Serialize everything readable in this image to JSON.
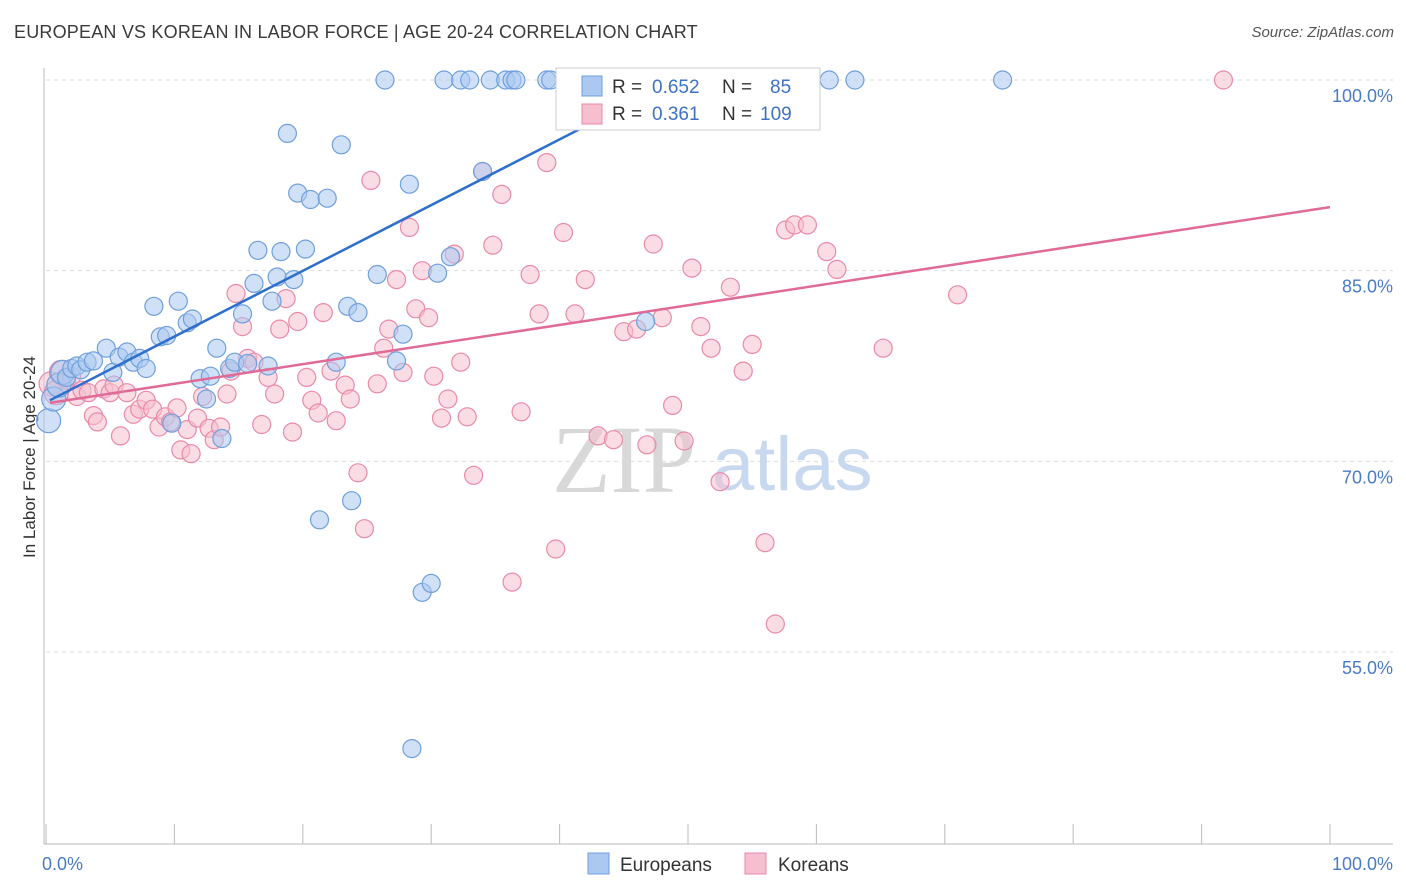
{
  "header": {
    "title": "EUROPEAN VS KOREAN IN LABOR FORCE | AGE 20-24 CORRELATION CHART",
    "source": "Source: ZipAtlas.com"
  },
  "watermark": {
    "zip": "ZIP",
    "atlas": "atlas"
  },
  "legend": {
    "europeans": {
      "r_label": "R =",
      "r_value": "0.652",
      "n_label": "N =",
      "n_value": "85"
    },
    "koreans": {
      "r_label": "R =",
      "r_value": "0.361",
      "n_label": "N =",
      "n_value": "109"
    }
  },
  "colors": {
    "europeans_fill": "#aac8f0",
    "europeans_stroke": "#6f9fdc",
    "europeans_line": "#2f6fcc",
    "koreans_fill": "#f6bfd0",
    "koreans_stroke": "#e98aa8",
    "koreans_line": "#e06b96"
  },
  "chart_data": {
    "type": "scatter",
    "title": "EUROPEAN VS KOREAN IN LABOR FORCE | AGE 20-24 CORRELATION CHART",
    "ylabel": "In Labor Force | Age 20-24",
    "xlabel": "",
    "xlim": [
      0,
      100
    ],
    "ylim": [
      40,
      101
    ],
    "x_ticks": [
      "0.0%",
      "100.0%"
    ],
    "y_ticks": [
      {
        "value": 100,
        "label": "100.0%"
      },
      {
        "value": 85,
        "label": "85.0%"
      },
      {
        "value": 70,
        "label": "70.0%"
      },
      {
        "value": 55,
        "label": "55.0%"
      }
    ],
    "legend_bottom": [
      "Europeans",
      "Koreans"
    ],
    "series": [
      {
        "name": "Europeans",
        "trend": {
          "x": [
            0.3,
            50.2
          ],
          "y": [
            74.8,
            100.6
          ]
        },
        "points": [
          [
            0.2,
            73.2
          ],
          [
            0.6,
            74.9
          ],
          [
            1.0,
            76.0
          ],
          [
            1.3,
            77.0
          ],
          [
            1.6,
            76.6
          ],
          [
            2.0,
            77.3
          ],
          [
            2.4,
            77.5
          ],
          [
            2.7,
            77.2
          ],
          [
            3.2,
            77.8
          ],
          [
            3.7,
            77.9
          ],
          [
            4.7,
            78.9
          ],
          [
            5.2,
            77.0
          ],
          [
            5.7,
            78.2
          ],
          [
            6.3,
            78.6
          ],
          [
            6.8,
            77.8
          ],
          [
            7.3,
            78.1
          ],
          [
            7.8,
            77.3
          ],
          [
            8.4,
            82.2
          ],
          [
            8.9,
            79.8
          ],
          [
            9.4,
            79.9
          ],
          [
            9.8,
            73.0
          ],
          [
            10.3,
            82.6
          ],
          [
            11.0,
            80.9
          ],
          [
            11.4,
            81.2
          ],
          [
            12.0,
            76.5
          ],
          [
            12.5,
            74.9
          ],
          [
            12.8,
            76.7
          ],
          [
            13.3,
            78.9
          ],
          [
            13.7,
            71.8
          ],
          [
            14.3,
            77.3
          ],
          [
            14.7,
            77.8
          ],
          [
            15.3,
            81.6
          ],
          [
            15.7,
            77.7
          ],
          [
            16.2,
            84.0
          ],
          [
            16.5,
            86.6
          ],
          [
            17.3,
            77.5
          ],
          [
            17.6,
            82.6
          ],
          [
            18.0,
            84.5
          ],
          [
            18.3,
            86.5
          ],
          [
            18.8,
            95.8
          ],
          [
            19.3,
            84.3
          ],
          [
            19.6,
            91.1
          ],
          [
            20.2,
            86.7
          ],
          [
            20.6,
            90.6
          ],
          [
            21.3,
            65.4
          ],
          [
            21.9,
            90.7
          ],
          [
            22.6,
            77.8
          ],
          [
            23.0,
            94.9
          ],
          [
            23.5,
            82.2
          ],
          [
            23.8,
            66.9
          ],
          [
            24.3,
            81.7
          ],
          [
            25.8,
            84.7
          ],
          [
            26.4,
            100
          ],
          [
            27.3,
            77.9
          ],
          [
            27.8,
            80.0
          ],
          [
            28.3,
            91.8
          ],
          [
            28.5,
            47.4
          ],
          [
            29.3,
            59.7
          ],
          [
            30.0,
            60.4
          ],
          [
            30.5,
            84.8
          ],
          [
            31.0,
            100
          ],
          [
            31.5,
            86.1
          ],
          [
            32.3,
            100
          ],
          [
            33.0,
            100
          ],
          [
            34.0,
            92.8
          ],
          [
            34.6,
            100
          ],
          [
            35.8,
            100
          ],
          [
            36.3,
            100
          ],
          [
            36.6,
            100
          ],
          [
            39.0,
            100
          ],
          [
            39.3,
            100
          ],
          [
            42.3,
            100
          ],
          [
            43.2,
            100
          ],
          [
            45.0,
            100
          ],
          [
            45.3,
            100
          ],
          [
            46.3,
            100
          ],
          [
            46.7,
            81.0
          ],
          [
            47.3,
            100
          ],
          [
            48.3,
            100
          ],
          [
            50.3,
            100
          ],
          [
            53.4,
            100
          ],
          [
            55.0,
            100
          ],
          [
            61.0,
            100
          ],
          [
            63.0,
            100
          ],
          [
            74.5,
            100
          ]
        ]
      },
      {
        "name": "Koreans",
        "trend": {
          "x": [
            0.3,
            100
          ],
          "y": [
            74.6,
            90.0
          ]
        },
        "points": [
          [
            0.4,
            76.1
          ],
          [
            0.8,
            75.4
          ],
          [
            1.2,
            77.0
          ],
          [
            1.6,
            76.4
          ],
          [
            2.0,
            76.7
          ],
          [
            2.4,
            75.1
          ],
          [
            2.8,
            75.6
          ],
          [
            3.3,
            75.4
          ],
          [
            3.7,
            73.6
          ],
          [
            4.0,
            73.1
          ],
          [
            4.5,
            75.7
          ],
          [
            5.0,
            75.4
          ],
          [
            5.3,
            76.0
          ],
          [
            5.8,
            72.0
          ],
          [
            6.3,
            75.4
          ],
          [
            6.8,
            73.7
          ],
          [
            7.3,
            74.1
          ],
          [
            7.8,
            74.8
          ],
          [
            8.3,
            74.1
          ],
          [
            8.8,
            72.7
          ],
          [
            9.3,
            73.5
          ],
          [
            9.7,
            73.1
          ],
          [
            10.2,
            74.2
          ],
          [
            10.5,
            70.9
          ],
          [
            11.0,
            72.5
          ],
          [
            11.3,
            70.6
          ],
          [
            11.8,
            73.4
          ],
          [
            12.2,
            75.1
          ],
          [
            12.7,
            72.6
          ],
          [
            13.1,
            71.7
          ],
          [
            13.6,
            72.7
          ],
          [
            14.1,
            75.3
          ],
          [
            14.4,
            77.1
          ],
          [
            14.8,
            83.2
          ],
          [
            15.3,
            80.6
          ],
          [
            15.7,
            78.1
          ],
          [
            16.2,
            77.8
          ],
          [
            16.8,
            72.9
          ],
          [
            17.3,
            76.6
          ],
          [
            17.8,
            75.3
          ],
          [
            18.2,
            80.4
          ],
          [
            18.7,
            82.8
          ],
          [
            19.2,
            72.3
          ],
          [
            19.6,
            81.0
          ],
          [
            20.3,
            76.6
          ],
          [
            20.7,
            74.8
          ],
          [
            21.2,
            73.8
          ],
          [
            21.6,
            81.7
          ],
          [
            22.2,
            77.1
          ],
          [
            22.6,
            73.2
          ],
          [
            23.3,
            76.0
          ],
          [
            23.7,
            74.9
          ],
          [
            24.3,
            69.1
          ],
          [
            24.8,
            64.7
          ],
          [
            25.3,
            92.1
          ],
          [
            25.8,
            76.1
          ],
          [
            26.3,
            78.9
          ],
          [
            26.7,
            80.4
          ],
          [
            27.3,
            84.3
          ],
          [
            27.8,
            77.0
          ],
          [
            28.3,
            88.4
          ],
          [
            28.8,
            82.0
          ],
          [
            29.3,
            85.0
          ],
          [
            29.8,
            81.3
          ],
          [
            30.2,
            76.7
          ],
          [
            30.8,
            73.4
          ],
          [
            31.3,
            74.9
          ],
          [
            31.8,
            86.3
          ],
          [
            32.3,
            77.8
          ],
          [
            32.8,
            73.5
          ],
          [
            33.3,
            68.9
          ],
          [
            34.0,
            92.8
          ],
          [
            34.8,
            87.0
          ],
          [
            35.5,
            91.0
          ],
          [
            36.3,
            60.5
          ],
          [
            37.0,
            73.9
          ],
          [
            37.7,
            84.7
          ],
          [
            38.4,
            81.6
          ],
          [
            39.0,
            93.5
          ],
          [
            39.7,
            63.1
          ],
          [
            40.3,
            88.0
          ],
          [
            41.2,
            81.6
          ],
          [
            42.0,
            84.3
          ],
          [
            43.0,
            72.0
          ],
          [
            44.2,
            71.7
          ],
          [
            45.0,
            80.2
          ],
          [
            46.0,
            80.4
          ],
          [
            46.8,
            71.3
          ],
          [
            47.3,
            87.1
          ],
          [
            48.0,
            81.3
          ],
          [
            48.8,
            74.4
          ],
          [
            49.7,
            71.6
          ],
          [
            50.3,
            85.2
          ],
          [
            51.0,
            80.6
          ],
          [
            51.8,
            78.9
          ],
          [
            52.5,
            68.4
          ],
          [
            53.3,
            83.7
          ],
          [
            54.3,
            77.1
          ],
          [
            55.0,
            79.2
          ],
          [
            56.0,
            63.6
          ],
          [
            56.8,
            57.2
          ],
          [
            57.6,
            88.2
          ],
          [
            58.3,
            88.6
          ],
          [
            59.3,
            88.6
          ],
          [
            60.8,
            86.5
          ],
          [
            61.6,
            85.1
          ],
          [
            65.2,
            78.9
          ],
          [
            71.0,
            83.1
          ],
          [
            91.7,
            100
          ]
        ]
      }
    ]
  }
}
